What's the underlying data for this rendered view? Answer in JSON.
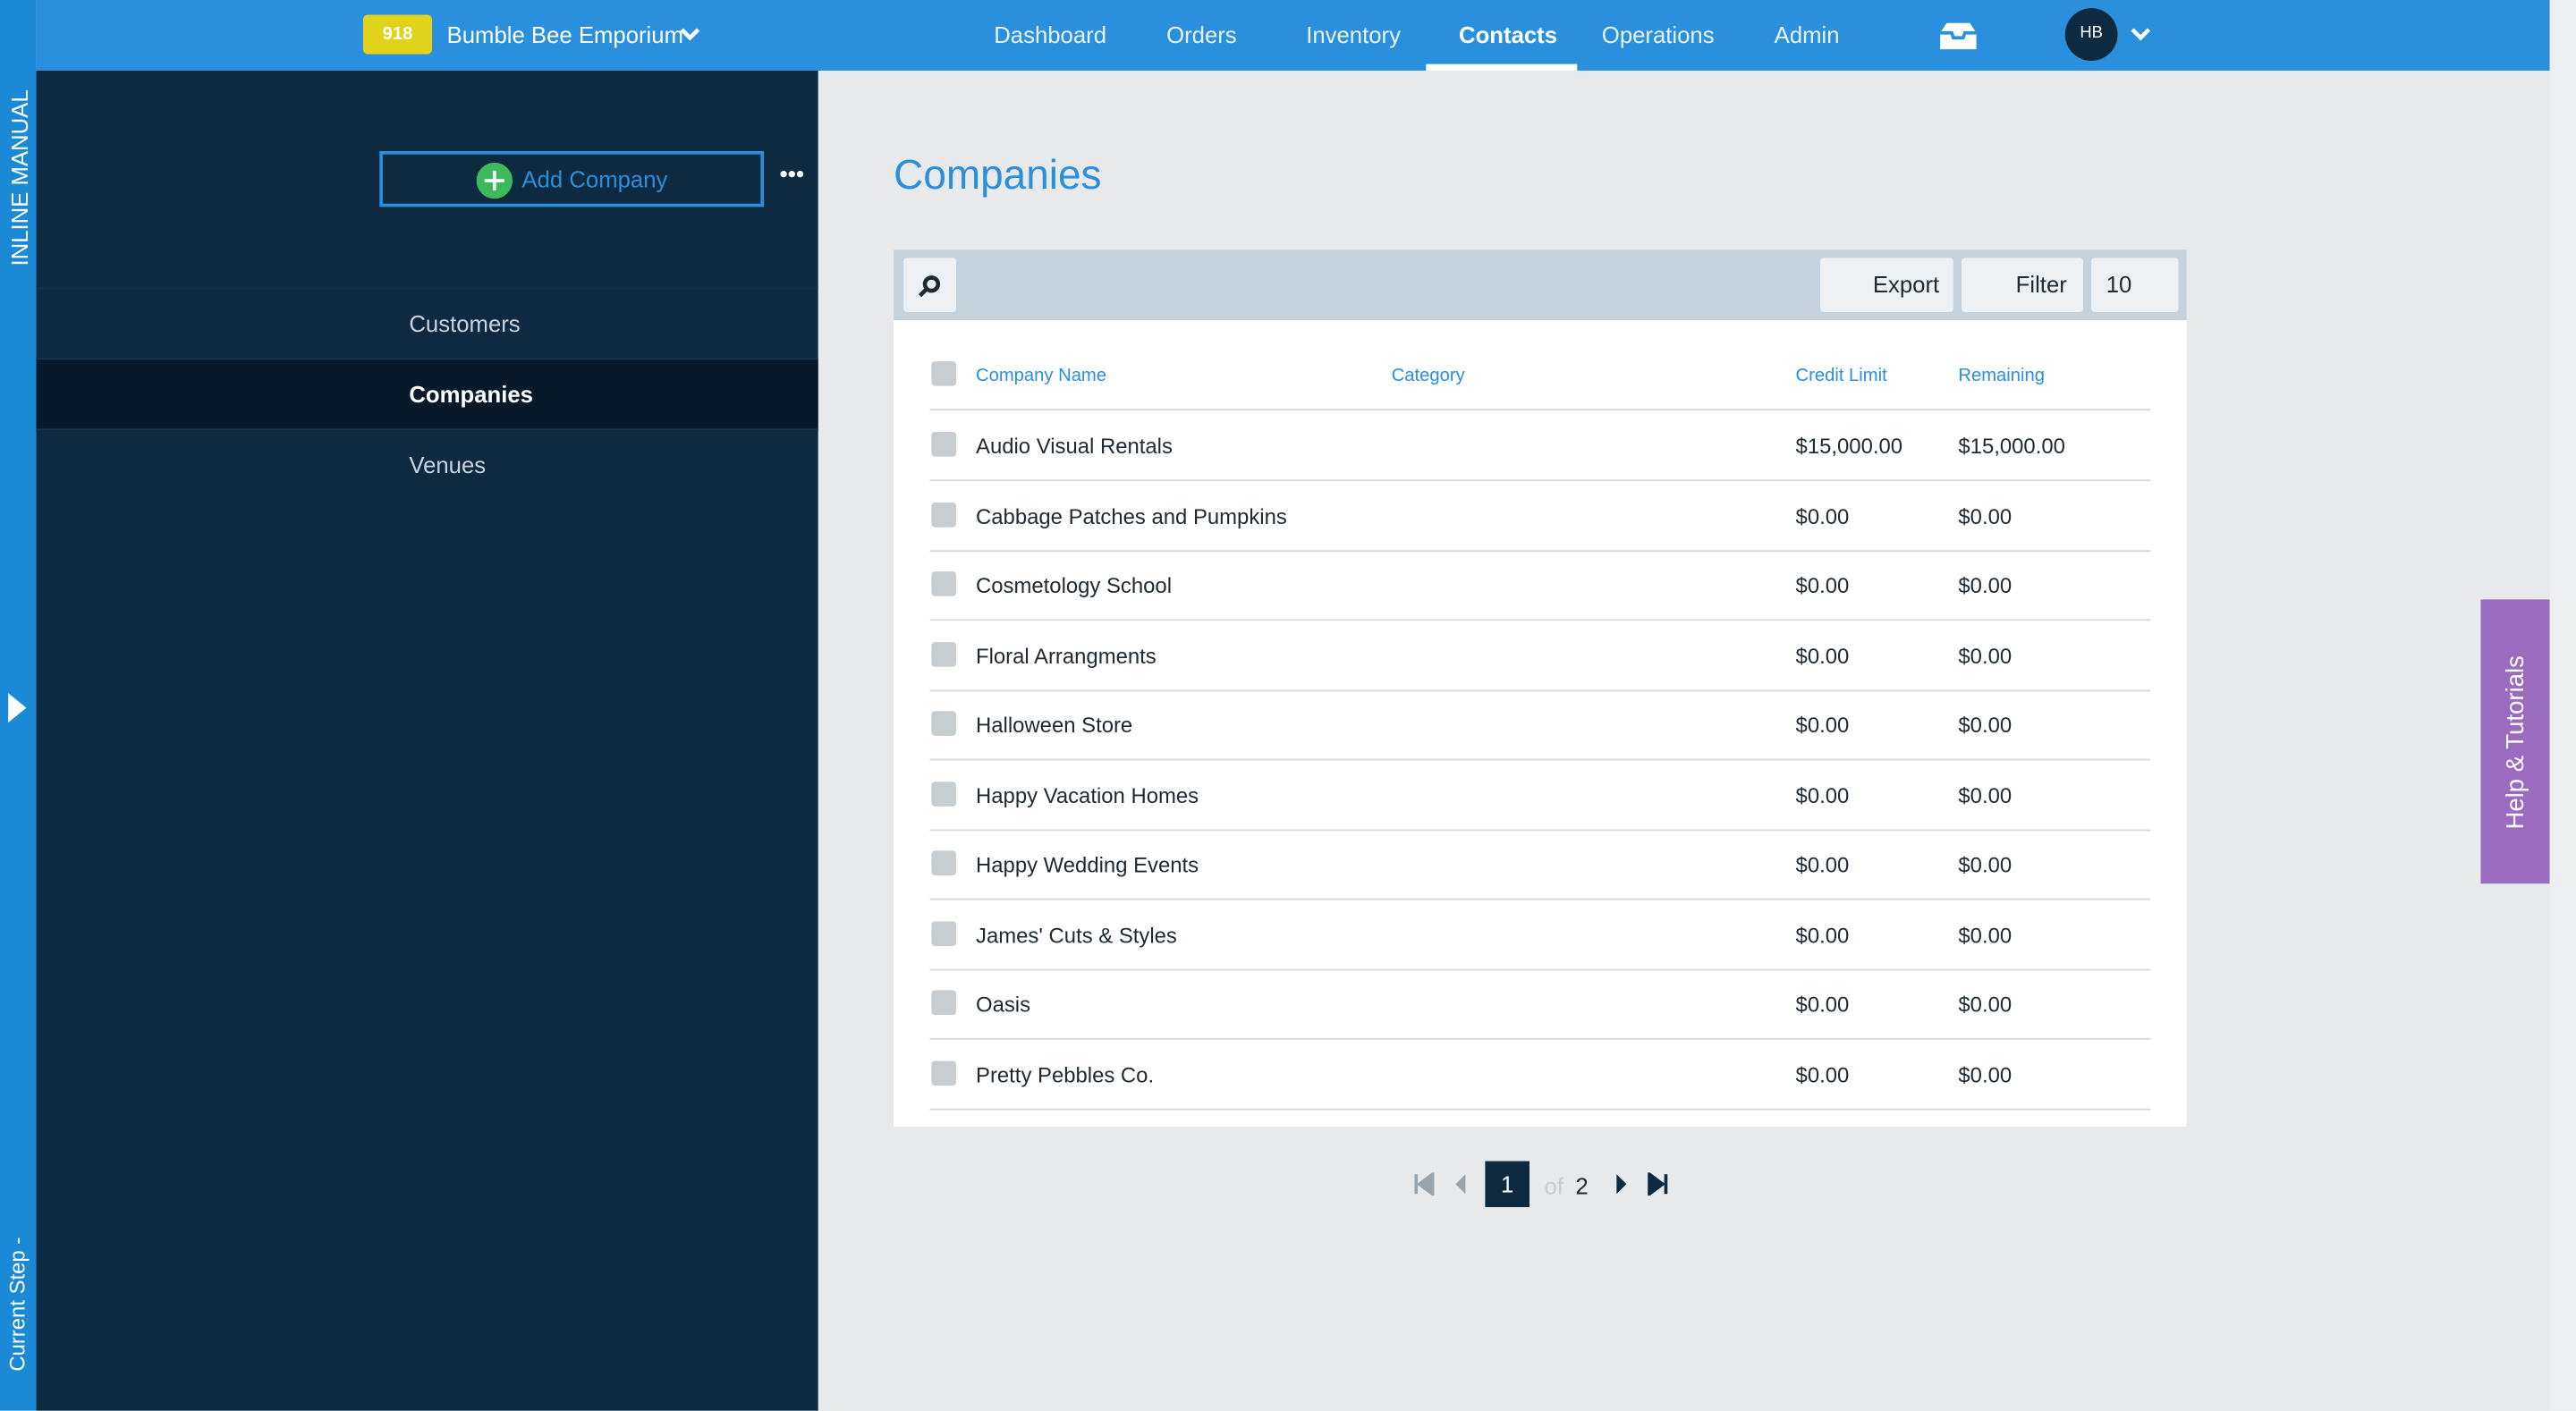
{
  "inline_manual": {
    "label": "INLINE MANUAL",
    "current_step": "Current Step -"
  },
  "header": {
    "badge": "918",
    "company": "Bumble Bee Emporium",
    "nav": [
      "Dashboard",
      "Orders",
      "Inventory",
      "Contacts",
      "Operations",
      "Admin"
    ],
    "avatar": "HB"
  },
  "sidebar": {
    "add_button": "Add Company",
    "items": [
      "Customers",
      "Companies",
      "Venues"
    ]
  },
  "main": {
    "title": "Companies",
    "toolbar": {
      "export": "Export",
      "filter": "Filter",
      "page_size": 10
    },
    "table": {
      "columns": [
        "Company Name",
        "Category",
        "Credit Limit",
        "Remaining"
      ],
      "rows": [
        {
          "name": "Audio Visual Rentals",
          "credit_limit": "$15,000.00",
          "remaining": "$15,000.00"
        },
        {
          "name": "Cabbage Patches and Pumpkins",
          "credit_limit": "$0.00",
          "remaining": "$0.00"
        },
        {
          "name": "Cosmetology School",
          "credit_limit": "$0.00",
          "remaining": "$0.00"
        },
        {
          "name": "Floral Arrangments",
          "credit_limit": "$0.00",
          "remaining": "$0.00"
        },
        {
          "name": "Halloween Store",
          "credit_limit": "$0.00",
          "remaining": "$0.00"
        },
        {
          "name": "Happy Vacation Homes",
          "credit_limit": "$0.00",
          "remaining": "$0.00"
        },
        {
          "name": "Happy Wedding Events",
          "credit_limit": "$0.00",
          "remaining": "$0.00"
        },
        {
          "name": "James' Cuts & Styles",
          "credit_limit": "$0.00",
          "remaining": "$0.00"
        },
        {
          "name": "Oasis",
          "credit_limit": "$0.00",
          "remaining": "$0.00"
        },
        {
          "name": "Pretty Pebbles Co.",
          "credit_limit": "$0.00",
          "remaining": "$0.00"
        }
      ]
    },
    "pagination": {
      "current": "1",
      "of": "of",
      "total": "2"
    }
  },
  "help": "Help & Tutorials"
}
